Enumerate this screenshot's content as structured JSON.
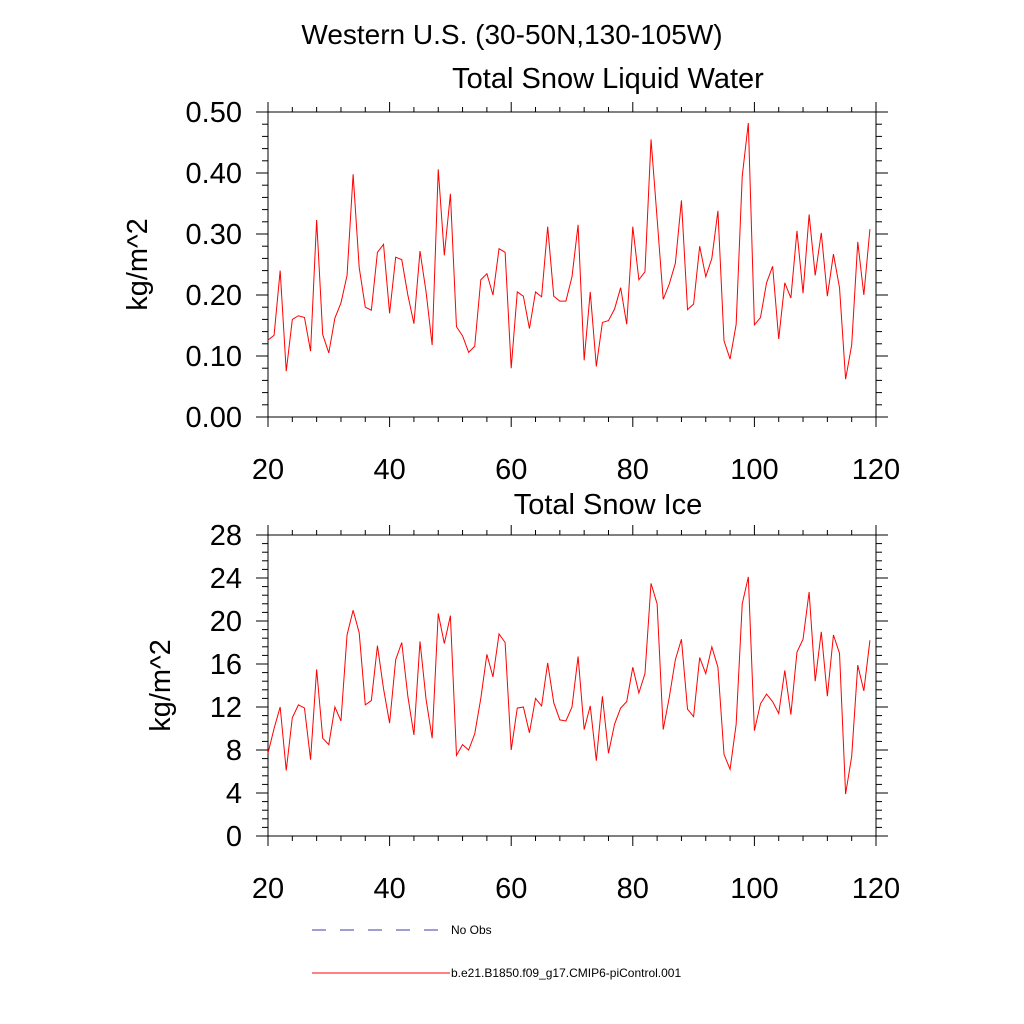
{
  "figure": {
    "suptitle": "Western U.S. (30-50N,130-105W)"
  },
  "colors": {
    "model": "#ff0000",
    "obs": "#3c3ca0",
    "axes": "#000000",
    "background": "#ffffff"
  },
  "legend": [
    {
      "label": "No Obs",
      "style": "dashed",
      "color_key": "obs"
    },
    {
      "label": "b.e21.B1850.f09_g17.CMIP6-piControl.001",
      "style": "solid",
      "color_key": "model"
    }
  ],
  "chart_data": [
    {
      "type": "line",
      "title": "Total Snow Liquid Water",
      "xlabel": "",
      "ylabel": "kg/m^2",
      "xlim": [
        20,
        120
      ],
      "ylim": [
        0,
        0.5
      ],
      "xticks": [
        20,
        40,
        60,
        80,
        100,
        120
      ],
      "xtick_labels": [
        "20",
        "40",
        "60",
        "80",
        "100",
        "120"
      ],
      "yticks": [
        0,
        0.1,
        0.2,
        0.3,
        0.4,
        0.5
      ],
      "ytick_labels": [
        "0.00",
        "0.10",
        "0.20",
        "0.30",
        "0.40",
        "0.50"
      ],
      "grid": false,
      "x_start": 20,
      "x_step": 1,
      "series": [
        {
          "name": "b.e21.B1850.f09_g17.CMIP6-piControl.001",
          "values": [
            0.126,
            0.134,
            0.24,
            0.075,
            0.16,
            0.166,
            0.163,
            0.108,
            0.323,
            0.135,
            0.105,
            0.162,
            0.187,
            0.232,
            0.398,
            0.245,
            0.18,
            0.175,
            0.27,
            0.283,
            0.17,
            0.262,
            0.258,
            0.2,
            0.153,
            0.272,
            0.205,
            0.118,
            0.406,
            0.265,
            0.366,
            0.148,
            0.133,
            0.106,
            0.116,
            0.225,
            0.235,
            0.2,
            0.276,
            0.27,
            0.08,
            0.205,
            0.198,
            0.145,
            0.205,
            0.197,
            0.312,
            0.198,
            0.19,
            0.19,
            0.23,
            0.315,
            0.093,
            0.205,
            0.083,
            0.155,
            0.158,
            0.177,
            0.212,
            0.152,
            0.312,
            0.225,
            0.238,
            0.455,
            0.325,
            0.193,
            0.218,
            0.252,
            0.355,
            0.176,
            0.185,
            0.28,
            0.23,
            0.26,
            0.338,
            0.125,
            0.095,
            0.152,
            0.395,
            0.482,
            0.151,
            0.163,
            0.22,
            0.247,
            0.128,
            0.22,
            0.195,
            0.305,
            0.203,
            0.332,
            0.232,
            0.302,
            0.198,
            0.267,
            0.212,
            0.062,
            0.118,
            0.287,
            0.2,
            0.308
          ]
        }
      ]
    },
    {
      "type": "line",
      "title": "Total Snow Ice",
      "xlabel": "",
      "ylabel": "kg/m^2",
      "xlim": [
        20,
        120
      ],
      "ylim": [
        0,
        28
      ],
      "xticks": [
        20,
        40,
        60,
        80,
        100,
        120
      ],
      "xtick_labels": [
        "20",
        "40",
        "60",
        "80",
        "100",
        "120"
      ],
      "yticks": [
        0,
        4,
        8,
        12,
        16,
        20,
        24,
        28
      ],
      "ytick_labels": [
        "0",
        "4",
        "8",
        "12",
        "16",
        "20",
        "24",
        "28"
      ],
      "grid": false,
      "x_start": 20,
      "x_step": 1,
      "series": [
        {
          "name": "b.e21.B1850.f09_g17.CMIP6-piControl.001",
          "values": [
            7.7,
            10.0,
            12.0,
            6.1,
            11.0,
            12.2,
            11.9,
            7.1,
            15.5,
            9.1,
            8.5,
            12.0,
            10.7,
            18.7,
            21.0,
            18.9,
            12.2,
            12.6,
            17.7,
            13.7,
            10.5,
            16.4,
            18.0,
            13.0,
            9.4,
            18.1,
            12.7,
            9.1,
            20.7,
            17.9,
            20.5,
            7.5,
            8.5,
            8.0,
            9.5,
            12.8,
            16.9,
            14.8,
            18.8,
            18.0,
            8.0,
            11.9,
            12.0,
            9.6,
            12.8,
            12.1,
            16.1,
            12.4,
            10.8,
            10.7,
            12.0,
            16.7,
            9.9,
            12.1,
            7.0,
            13.0,
            7.7,
            10.4,
            11.9,
            12.5,
            15.7,
            13.3,
            15.1,
            23.5,
            21.6,
            9.9,
            12.9,
            16.4,
            18.3,
            11.8,
            11.1,
            16.6,
            15.1,
            17.6,
            15.7,
            7.6,
            6.2,
            10.4,
            21.6,
            24.1,
            9.8,
            12.3,
            13.2,
            12.5,
            11.4,
            15.4,
            11.3,
            17.1,
            18.3,
            22.7,
            14.4,
            19.0,
            13.0,
            18.7,
            17.0,
            3.9,
            7.4,
            15.9,
            13.5,
            18.2
          ]
        }
      ]
    }
  ]
}
